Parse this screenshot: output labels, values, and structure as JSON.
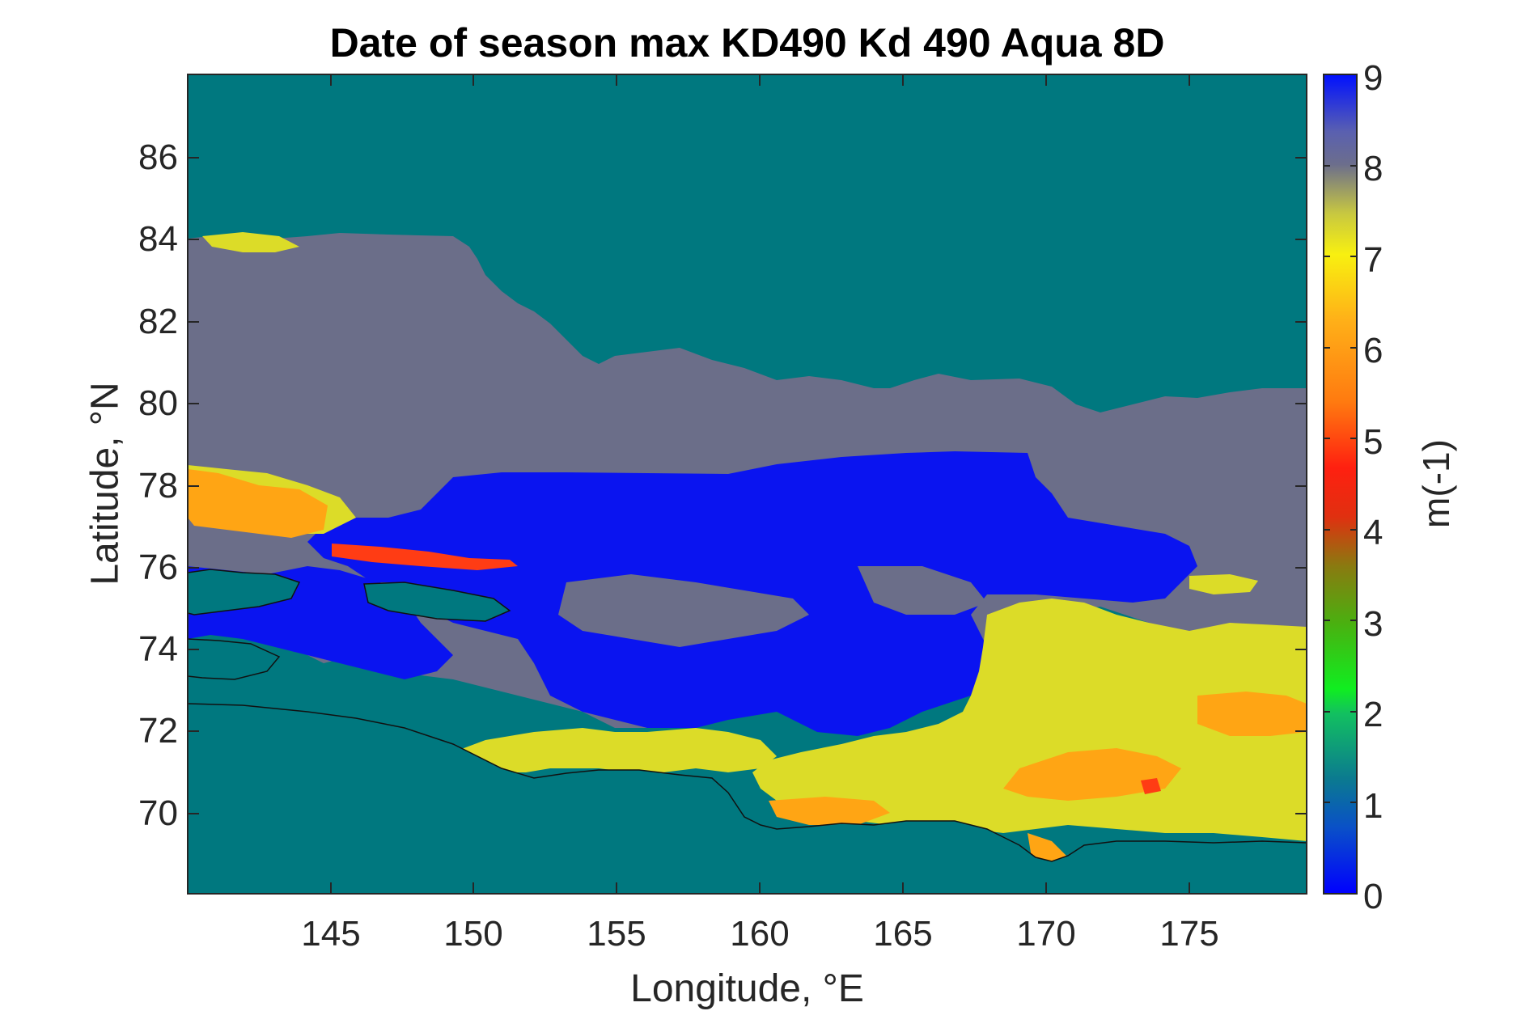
{
  "title": "Date of season max KD490 Kd 490 Aqua 8D",
  "x_axis": {
    "label": "Longitude, °E",
    "range": [
      140,
      179
    ],
    "ticks": [
      "145",
      "150",
      "155",
      "160",
      "165",
      "170",
      "175"
    ],
    "tick_values": [
      145,
      150,
      155,
      160,
      165,
      170,
      175
    ]
  },
  "y_axis": {
    "label": "Latitude, °N",
    "range": [
      68,
      88
    ],
    "ticks": [
      "86",
      "84",
      "82",
      "80",
      "78",
      "76",
      "74",
      "72",
      "70"
    ],
    "tick_values": [
      86,
      84,
      82,
      80,
      78,
      76,
      74,
      72,
      70
    ]
  },
  "colorbar": {
    "label": "m(-1)",
    "range": [
      0,
      9
    ],
    "ticks": [
      "9",
      "8",
      "7",
      "6",
      "5",
      "4",
      "3",
      "2",
      "1",
      "0"
    ],
    "tick_values": [
      9,
      8,
      7,
      6,
      5,
      4,
      3,
      2,
      1,
      0
    ]
  },
  "colors": {
    "land_background": "#00787f",
    "value_0_blue": "#0a14f0",
    "value_8_gray": "#6b6e89",
    "value_7_yellow": "#dcdc28",
    "value_6_orange": "#ffa514",
    "value_5_red": "#ff3c14"
  },
  "map_regions": {
    "description_classes": [
      "land",
      "0",
      "6",
      "7",
      "8",
      "5"
    ]
  }
}
